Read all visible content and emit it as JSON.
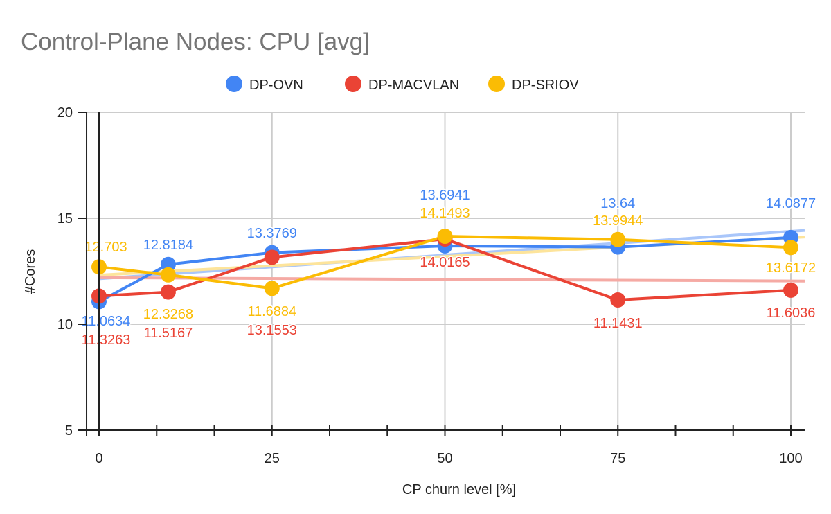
{
  "chart_data": {
    "type": "line",
    "title": "Control-Plane Nodes: CPU [avg]",
    "xlabel": "CP churn level [%]",
    "ylabel": "#Cores",
    "x": [
      0,
      10,
      25,
      50,
      75,
      100
    ],
    "xticks": [
      0,
      25,
      50,
      75,
      100
    ],
    "yticks": [
      5,
      10,
      15,
      20
    ],
    "xlim": [
      -1.8,
      102
    ],
    "ylim": [
      5,
      20
    ],
    "grid": true,
    "legend": "top",
    "trendlines": true,
    "series": [
      {
        "name": "DP-OVN",
        "color": "#4285f4",
        "trend_color": "#a9c6fa",
        "values": [
          11.0634,
          12.8184,
          13.3769,
          13.6941,
          13.64,
          14.0877
        ]
      },
      {
        "name": "DP-MACVLAN",
        "color": "#ea4335",
        "trend_color": "#f5aaa4",
        "values": [
          11.3263,
          11.5167,
          13.1553,
          14.0165,
          11.1431,
          11.6036
        ]
      },
      {
        "name": "DP-SRIOV",
        "color": "#fbbc04",
        "trend_color": "#fde49b",
        "values": [
          12.703,
          12.3268,
          11.6884,
          14.1493,
          13.9944,
          13.6172
        ]
      }
    ]
  }
}
